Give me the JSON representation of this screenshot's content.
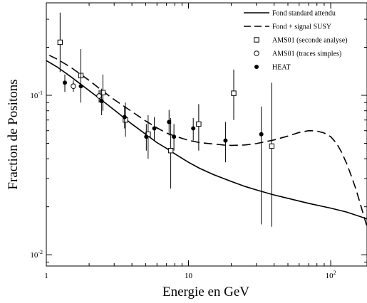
{
  "chart_data": {
    "type": "line",
    "xlabel": "Energie en GeV",
    "ylabel": "Fraction de Positons",
    "xscale": "log",
    "yscale": "log",
    "xlim": [
      1,
      180
    ],
    "ylim": [
      0.0085,
      0.38
    ],
    "x_ticks": [
      {
        "value": 1,
        "label": "1"
      },
      {
        "value": 10,
        "label": "10"
      },
      {
        "value": 100,
        "label": "10",
        "exp": "2"
      }
    ],
    "y_ticks": [
      {
        "value": 0.01,
        "label": "10",
        "exp": "-2"
      },
      {
        "value": 0.1,
        "label": "10",
        "exp": "-1"
      }
    ],
    "legend_position": "top-right",
    "series": [
      {
        "name": "Fond standard attendu",
        "style": "solid-line",
        "x": [
          1,
          1.2,
          1.5,
          2,
          2.5,
          3,
          4,
          5,
          6,
          7,
          8,
          10,
          12,
          15,
          20,
          25,
          30,
          40,
          50,
          70,
          100,
          130,
          180
        ],
        "y": [
          0.165,
          0.15,
          0.13,
          0.107,
          0.092,
          0.081,
          0.066,
          0.057,
          0.0505,
          0.0465,
          0.043,
          0.038,
          0.0348,
          0.0318,
          0.0288,
          0.0268,
          0.0255,
          0.0237,
          0.0226,
          0.021,
          0.0196,
          0.0185,
          0.0168
        ]
      },
      {
        "name": "Fond + signal SUSY",
        "style": "dashed-line",
        "x": [
          1.05,
          1.2,
          1.5,
          2,
          2.5,
          3,
          4,
          5,
          6,
          7,
          8,
          10,
          12,
          15,
          18,
          20,
          25,
          30,
          40,
          50,
          60,
          70,
          80,
          90,
          100,
          110,
          120,
          130,
          140,
          150,
          160,
          170,
          180
        ],
        "y": [
          0.178,
          0.168,
          0.149,
          0.124,
          0.106,
          0.094,
          0.079,
          0.069,
          0.0625,
          0.058,
          0.0555,
          0.0522,
          0.0505,
          0.0495,
          0.0487,
          0.0485,
          0.0488,
          0.0498,
          0.0525,
          0.0555,
          0.0585,
          0.06,
          0.0597,
          0.058,
          0.055,
          0.05,
          0.0435,
          0.037,
          0.031,
          0.026,
          0.0215,
          0.0178,
          0.015
        ]
      },
      {
        "name": "AMS01 (seconde analyse)",
        "style": "open-square",
        "points": [
          {
            "x": 1.25,
            "y": 0.215,
            "lo": 0.14,
            "hi": 0.33
          },
          {
            "x": 1.75,
            "y": 0.133,
            "lo": 0.095,
            "hi": 0.195
          },
          {
            "x": 2.5,
            "y": 0.104,
            "lo": 0.08,
            "hi": 0.135
          },
          {
            "x": 3.6,
            "y": 0.07,
            "lo": 0.055,
            "hi": 0.09
          },
          {
            "x": 5.2,
            "y": 0.057,
            "lo": 0.04,
            "hi": 0.075
          },
          {
            "x": 7.5,
            "y": 0.045,
            "lo": 0.026,
            "hi": 0.072
          },
          {
            "x": 11.8,
            "y": 0.066,
            "lo": 0.045,
            "hi": 0.088
          },
          {
            "x": 20.8,
            "y": 0.103,
            "lo": 0.07,
            "hi": 0.145
          },
          {
            "x": 38.5,
            "y": 0.048,
            "lo": 0.015,
            "hi": 0.12
          }
        ]
      },
      {
        "name": "AMS01 (traces simples)",
        "style": "open-circle",
        "points": [
          {
            "x": 1.55,
            "y": 0.114,
            "lo": 0.105,
            "hi": 0.124
          },
          {
            "x": 2.35,
            "y": 0.099,
            "lo": 0.09,
            "hi": 0.108
          }
        ]
      },
      {
        "name": "HEAT",
        "style": "filled-circle",
        "points": [
          {
            "x": 1.35,
            "y": 0.12,
            "lo": 0.105,
            "hi": 0.135
          },
          {
            "x": 1.75,
            "y": 0.114,
            "lo": 0.09,
            "hi": 0.138
          },
          {
            "x": 2.45,
            "y": 0.092,
            "lo": 0.075,
            "hi": 0.11
          },
          {
            "x": 3.55,
            "y": 0.073,
            "lo": 0.062,
            "hi": 0.085
          },
          {
            "x": 5.05,
            "y": 0.055,
            "lo": 0.045,
            "hi": 0.066
          },
          {
            "x": 5.75,
            "y": 0.062,
            "lo": 0.052,
            "hi": 0.073
          },
          {
            "x": 7.3,
            "y": 0.068,
            "lo": 0.056,
            "hi": 0.081
          },
          {
            "x": 7.9,
            "y": 0.055,
            "lo": 0.045,
            "hi": 0.066
          },
          {
            "x": 10.8,
            "y": 0.062,
            "lo": 0.052,
            "hi": 0.072
          },
          {
            "x": 18.2,
            "y": 0.052,
            "lo": 0.038,
            "hi": 0.068
          },
          {
            "x": 32.5,
            "y": 0.057,
            "lo": 0.0155,
            "hi": 0.085
          }
        ]
      }
    ]
  }
}
